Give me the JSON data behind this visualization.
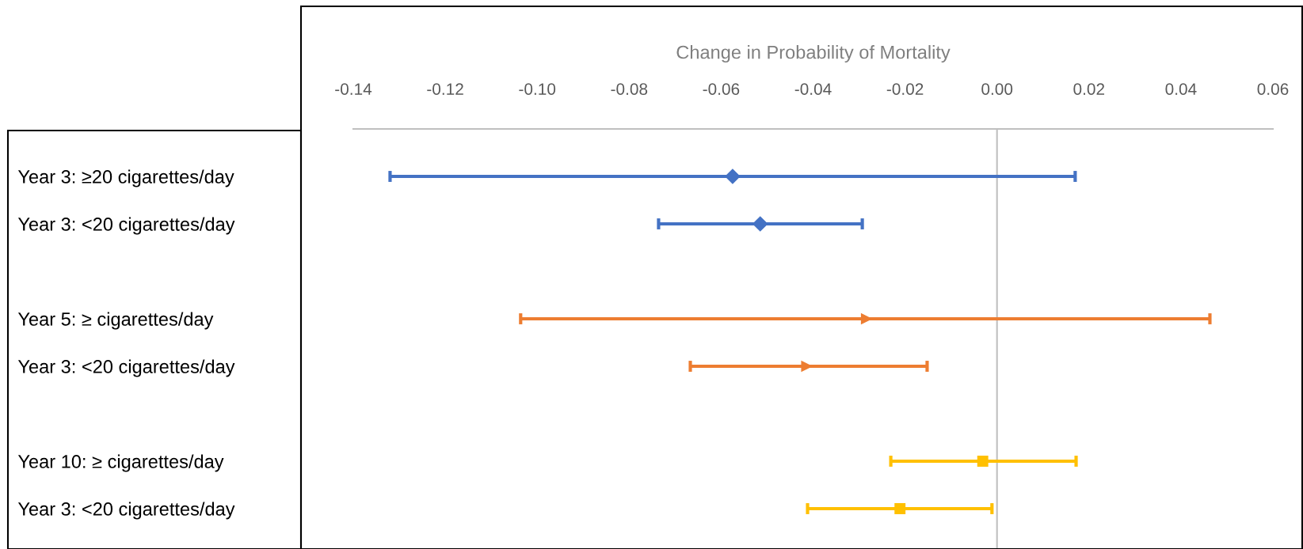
{
  "chart_data": {
    "type": "scatter",
    "orientation": "horizontal",
    "xlabel": "Change in Probability of Mortality",
    "categories": [
      "Year 3: ≥20 cigarettes/day",
      "Year 3: <20 cigarettes/day",
      null,
      "Year 5: ≥ cigarettes/day",
      "Year 3: <20 cigarettes/day",
      null,
      "Year 10: ≥ cigarettes/day",
      "Year 3: <20 cigarettes/day"
    ],
    "xlim": [
      -0.14,
      0.06
    ],
    "xticks": [
      {
        "value": -0.14,
        "label": "-0.14"
      },
      {
        "value": -0.12,
        "label": "-0.12"
      },
      {
        "value": -0.1,
        "label": "-0.10"
      },
      {
        "value": -0.08,
        "label": "-0.08"
      },
      {
        "value": -0.06,
        "label": "-0.06"
      },
      {
        "value": -0.04,
        "label": "-0.04"
      },
      {
        "value": -0.02,
        "label": "-0.02"
      },
      {
        "value": 0,
        "label": "0.00"
      },
      {
        "value": 0.02,
        "label": "0.02"
      },
      {
        "value": 0.04,
        "label": "0.04"
      },
      {
        "value": 0.06,
        "label": "0.06"
      }
    ],
    "series": [
      {
        "color": "#4472c4",
        "marker": "diamond",
        "values": [
          -0.0575,
          -0.0515,
          null,
          null,
          null,
          null,
          null,
          null
        ],
        "errors": [
          [
            -0.132,
            0.017
          ],
          [
            -0.0736,
            -0.0293
          ],
          null,
          null,
          null,
          null,
          null,
          null
        ]
      },
      {
        "color": "#ed7d31",
        "marker": "triangle",
        "values": [
          null,
          null,
          null,
          -0.0284,
          -0.0414,
          null,
          null,
          null
        ],
        "errors": [
          null,
          null,
          null,
          [
            -0.1036,
            0.0463
          ],
          [
            -0.0667,
            -0.0152
          ],
          null,
          null,
          null
        ]
      },
      {
        "color": "#ffc000",
        "marker": "square",
        "values": [
          null,
          null,
          null,
          null,
          null,
          null,
          -0.0031,
          -0.0211
        ],
        "errors": [
          null,
          null,
          null,
          null,
          null,
          null,
          [
            -0.0231,
            0.0172
          ],
          [
            -0.0412,
            -0.0011
          ]
        ]
      }
    ],
    "ref_lines": [
      {
        "axis": "x",
        "value": 0,
        "color": "#bfbfbf"
      }
    ],
    "grid": false,
    "legend": false
  }
}
